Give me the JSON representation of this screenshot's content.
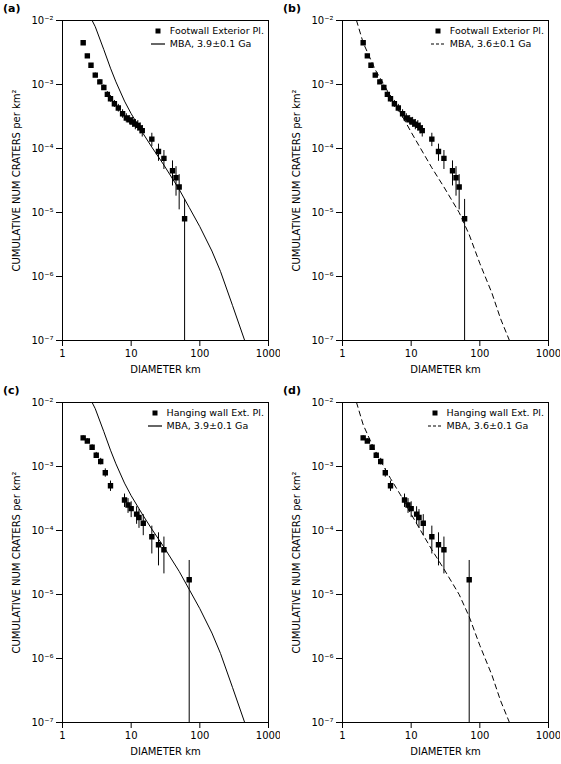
{
  "chart_data": [
    {
      "type": "scatter",
      "title": "(a)",
      "x_label": "DIAMETER km",
      "y_label": "CUMULATIVE NUM CRATERS per km²",
      "log": true,
      "legend": "top-right",
      "xlim": [
        1,
        1000
      ],
      "ylim": [
        1e-07,
        0.01
      ],
      "xticks": [
        1,
        10,
        100,
        1000
      ],
      "yticks": [
        {
          "value": 1e-07,
          "label": "10⁻⁷"
        },
        {
          "value": 1e-06,
          "label": "10⁻⁶"
        },
        {
          "value": 1e-05,
          "label": "10⁻⁵"
        },
        {
          "value": 0.0001,
          "label": "10⁻⁴"
        },
        {
          "value": 0.001,
          "label": "10⁻³"
        },
        {
          "value": 0.01,
          "label": "10⁻²"
        }
      ],
      "series": [
        {
          "name": "Footwall Exterior Pl.",
          "type": "scatter",
          "marker": "square",
          "color": "#000000",
          "x": [
            2.0,
            2.3,
            2.6,
            3.0,
            3.5,
            4.0,
            4.5,
            5.0,
            5.7,
            6.5,
            7.5,
            8.5,
            9.5,
            10.5,
            11.5,
            12.5,
            13.5,
            14.5,
            20,
            25,
            30,
            40,
            45,
            50,
            60
          ],
          "values": [
            0.0045,
            0.0028,
            0.002,
            0.0014,
            0.0011,
            0.0009,
            0.0007,
            0.0006,
            0.0005,
            0.00043,
            0.00035,
            0.0003,
            0.00028,
            0.00026,
            0.00024,
            0.00023,
            0.00021,
            0.00019,
            0.00014,
            9e-05,
            7e-05,
            4.5e-05,
            3.5e-05,
            2.5e-05,
            8e-06
          ],
          "errors": [
            0.00019,
            0.00015,
            0.00013,
            0.00011,
            9e-05,
            8.5e-05,
            7.5e-05,
            7e-05,
            6.3e-05,
            5.9e-05,
            5.3e-05,
            4.9e-05,
            4.7e-05,
            4.6e-05,
            4.4e-05,
            4.3e-05,
            4.1e-05,
            3.9e-05,
            3.3e-05,
            2.7e-05,
            2.3e-05,
            1.9e-05,
            1.7e-05,
            1.4e-05,
            8e-06
          ]
        },
        {
          "name": "MBA, 3.9±0.1 Ga",
          "type": "line",
          "line_style": "solid",
          "color": "#000000",
          "x": [
            2.7,
            3,
            4,
            5,
            6,
            8,
            10,
            15,
            20,
            30,
            50,
            70,
            100,
            150,
            200,
            300,
            450
          ],
          "values": [
            0.01,
            0.008,
            0.0035,
            0.0018,
            0.0011,
            0.00055,
            0.00035,
            0.00017,
            0.000105,
            5.5e-05,
            2.3e-05,
            1.2e-05,
            6e-06,
            2.5e-06,
            1.2e-06,
            3.5e-07,
            1e-07
          ]
        }
      ]
    },
    {
      "type": "scatter",
      "title": "(b)",
      "x_label": "DIAMETER km",
      "y_label": "CUMULATIVE NUM CRATERS per km²",
      "log": true,
      "legend": "top-right",
      "xlim": [
        1,
        1000
      ],
      "ylim": [
        1e-07,
        0.01
      ],
      "xticks": [
        1,
        10,
        100,
        1000
      ],
      "yticks": [
        {
          "value": 1e-07,
          "label": "10⁻⁷"
        },
        {
          "value": 1e-06,
          "label": "10⁻⁶"
        },
        {
          "value": 1e-05,
          "label": "10⁻⁵"
        },
        {
          "value": 0.0001,
          "label": "10⁻⁴"
        },
        {
          "value": 0.001,
          "label": "10⁻³"
        },
        {
          "value": 0.01,
          "label": "10⁻²"
        }
      ],
      "series": [
        {
          "name": "Footwall Exterior Pl.",
          "type": "scatter",
          "marker": "square",
          "color": "#000000",
          "x": [
            2.0,
            2.3,
            2.6,
            3.0,
            3.5,
            4.0,
            4.5,
            5.0,
            5.7,
            6.5,
            7.5,
            8.5,
            9.5,
            10.5,
            11.5,
            12.5,
            13.5,
            14.5,
            20,
            25,
            30,
            40,
            45,
            50,
            60
          ],
          "values": [
            0.0045,
            0.0028,
            0.002,
            0.0014,
            0.0011,
            0.0009,
            0.0007,
            0.0006,
            0.0005,
            0.00043,
            0.00035,
            0.0003,
            0.00028,
            0.00026,
            0.00024,
            0.00023,
            0.00021,
            0.00019,
            0.00014,
            9e-05,
            7e-05,
            4.5e-05,
            3.5e-05,
            2.5e-05,
            8e-06
          ],
          "errors": [
            0.00019,
            0.00015,
            0.00013,
            0.00011,
            9e-05,
            8.5e-05,
            7.5e-05,
            7e-05,
            6.3e-05,
            5.9e-05,
            5.3e-05,
            4.9e-05,
            4.7e-05,
            4.6e-05,
            4.4e-05,
            4.3e-05,
            4.1e-05,
            3.9e-05,
            3.3e-05,
            2.7e-05,
            2.3e-05,
            1.9e-05,
            1.7e-05,
            1.4e-05,
            8e-06
          ]
        },
        {
          "name": "MBA, 3.6±0.1 Ga",
          "type": "line",
          "line_style": "dashed",
          "color": "#000000",
          "x": [
            1.6,
            2,
            3,
            4,
            5,
            7,
            10,
            15,
            20,
            30,
            50,
            70,
            100,
            150,
            200,
            270
          ],
          "values": [
            0.01,
            0.0045,
            0.0017,
            0.001,
            0.00065,
            0.00036,
            0.00018,
            8.5e-05,
            5e-05,
            2.5e-05,
            1e-05,
            4.5e-06,
            1.6e-06,
            5.5e-07,
            2.2e-07,
            1e-07
          ]
        }
      ]
    },
    {
      "type": "scatter",
      "title": "(c)",
      "x_label": "DIAMETER km",
      "y_label": "CUMULATIVE NUM CRATERS per km²",
      "log": true,
      "legend": "top-right",
      "xlim": [
        1,
        1000
      ],
      "ylim": [
        1e-07,
        0.01
      ],
      "xticks": [
        1,
        10,
        100,
        1000
      ],
      "yticks": [
        {
          "value": 1e-07,
          "label": "10⁻⁷"
        },
        {
          "value": 1e-06,
          "label": "10⁻⁶"
        },
        {
          "value": 1e-05,
          "label": "10⁻⁵"
        },
        {
          "value": 0.0001,
          "label": "10⁻⁴"
        },
        {
          "value": 0.001,
          "label": "10⁻³"
        },
        {
          "value": 0.01,
          "label": "10⁻²"
        }
      ],
      "series": [
        {
          "name": "Hanging wall Ext. Pl.",
          "type": "scatter",
          "marker": "square",
          "color": "#000000",
          "x": [
            2.0,
            2.3,
            2.7,
            3.1,
            3.6,
            4.2,
            5.0,
            8,
            9,
            10,
            12,
            13,
            15,
            20,
            25,
            30,
            70
          ],
          "values": [
            0.0028,
            0.0025,
            0.002,
            0.0015,
            0.0012,
            0.0008,
            0.0005,
            0.0003,
            0.00025,
            0.00022,
            0.00018,
            0.00016,
            0.00013,
            8e-05,
            6e-05,
            5e-05,
            1.7e-05
          ],
          "errors": [
            0.00022,
            0.00021,
            0.00018,
            0.00016,
            0.00014,
            0.00012,
            9.2e-05,
            7.1e-05,
            6.5e-05,
            6.1e-05,
            5.5e-05,
            5.2e-05,
            4.7e-05,
            3.7e-05,
            3.2e-05,
            2.9e-05,
            1.7e-05
          ]
        },
        {
          "name": "MBA, 3.9±0.1 Ga",
          "type": "line",
          "line_style": "solid",
          "color": "#000000",
          "x": [
            2.7,
            3,
            4,
            5,
            6,
            8,
            10,
            15,
            20,
            30,
            50,
            70,
            100,
            150,
            200,
            300,
            450
          ],
          "values": [
            0.01,
            0.008,
            0.0035,
            0.0018,
            0.0011,
            0.00055,
            0.00035,
            0.00017,
            0.000105,
            5.5e-05,
            2.3e-05,
            1.2e-05,
            6e-06,
            2.5e-06,
            1.2e-06,
            3.5e-07,
            1e-07
          ]
        }
      ]
    },
    {
      "type": "scatter",
      "title": "(d)",
      "x_label": "DIAMETER km",
      "y_label": "CUMULATIVE NUM CRATERS per km²",
      "log": true,
      "legend": "top-right",
      "xlim": [
        1,
        1000
      ],
      "ylim": [
        1e-07,
        0.01
      ],
      "xticks": [
        1,
        10,
        100,
        1000
      ],
      "yticks": [
        {
          "value": 1e-07,
          "label": "10⁻⁷"
        },
        {
          "value": 1e-06,
          "label": "10⁻⁶"
        },
        {
          "value": 1e-05,
          "label": "10⁻⁵"
        },
        {
          "value": 0.0001,
          "label": "10⁻⁴"
        },
        {
          "value": 0.001,
          "label": "10⁻³"
        },
        {
          "value": 0.01,
          "label": "10⁻²"
        }
      ],
      "series": [
        {
          "name": "Hanging wall Ext. Pl.",
          "type": "scatter",
          "marker": "square",
          "color": "#000000",
          "x": [
            2.0,
            2.3,
            2.7,
            3.1,
            3.6,
            4.2,
            5.0,
            8,
            9,
            10,
            12,
            13,
            15,
            20,
            25,
            30,
            70
          ],
          "values": [
            0.0028,
            0.0025,
            0.002,
            0.0015,
            0.0012,
            0.0008,
            0.0005,
            0.0003,
            0.00025,
            0.00022,
            0.00018,
            0.00016,
            0.00013,
            8e-05,
            6e-05,
            5e-05,
            1.7e-05
          ],
          "errors": [
            0.00022,
            0.00021,
            0.00018,
            0.00016,
            0.00014,
            0.00012,
            9.2e-05,
            7.1e-05,
            6.5e-05,
            6.1e-05,
            5.5e-05,
            5.2e-05,
            4.7e-05,
            3.7e-05,
            3.2e-05,
            2.9e-05,
            1.7e-05
          ]
        },
        {
          "name": "MBA, 3.6±0.1 Ga",
          "type": "line",
          "line_style": "dashed",
          "color": "#000000",
          "x": [
            1.6,
            2,
            3,
            4,
            5,
            7,
            10,
            15,
            20,
            30,
            50,
            70,
            100,
            150,
            200,
            270
          ],
          "values": [
            0.01,
            0.0045,
            0.0017,
            0.001,
            0.00065,
            0.00036,
            0.00018,
            8.5e-05,
            5e-05,
            2.5e-05,
            1e-05,
            4.5e-06,
            1.6e-06,
            5.5e-07,
            2.2e-07,
            1e-07
          ]
        }
      ]
    }
  ]
}
